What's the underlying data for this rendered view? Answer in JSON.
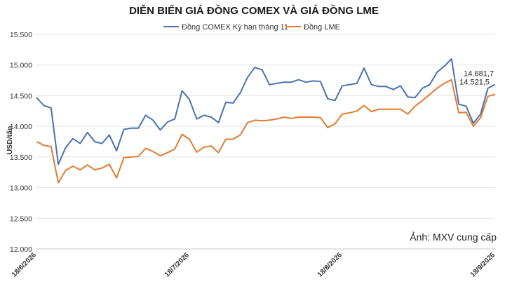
{
  "chart_data": {
    "type": "line",
    "title": "DIỄN BIẾN GIÁ ĐỒNG COMEX VÀ GIÁ ĐỒNG LME",
    "ylabel": "USD/tấn",
    "xlabel": "",
    "ylim": [
      12000,
      15500
    ],
    "yticks": [
      "12.000",
      "12.500",
      "13.000",
      "13.500",
      "14.000",
      "14.500",
      "15.000",
      "15.500"
    ],
    "ytick_values": [
      12000,
      12500,
      13000,
      13500,
      14000,
      14500,
      15000,
      15500
    ],
    "xtick_labels": [
      "18/6/2026",
      "18/7/2026",
      "18/8/2026",
      "18/9/2026"
    ],
    "xtick_index": [
      0,
      21,
      42,
      63
    ],
    "n_points": 64,
    "grid": true,
    "legend_position": "top",
    "series": [
      {
        "name": "Đồng COMEX Kỳ hạn tháng 11",
        "color": "#4a72b0",
        "values": [
          14470,
          14340,
          14300,
          13380,
          13650,
          13800,
          13720,
          13900,
          13750,
          13720,
          13860,
          13600,
          13950,
          13970,
          13970,
          14180,
          14100,
          13940,
          14070,
          14120,
          14580,
          14440,
          14120,
          14180,
          14150,
          14060,
          14390,
          14380,
          14550,
          14800,
          14960,
          14920,
          14680,
          14700,
          14720,
          14720,
          14760,
          14720,
          14740,
          14730,
          14450,
          14420,
          14660,
          14680,
          14700,
          14950,
          14680,
          14650,
          14650,
          14600,
          14660,
          14480,
          14470,
          14620,
          14680,
          14880,
          14980,
          15100,
          14360,
          14330,
          14050,
          14200,
          14620,
          14682
        ]
      },
      {
        "name": "Đồng LME",
        "color": "#e07c33",
        "values": [
          13750,
          13690,
          13670,
          13080,
          13280,
          13350,
          13290,
          13370,
          13290,
          13320,
          13380,
          13160,
          13490,
          13500,
          13510,
          13640,
          13590,
          13520,
          13570,
          13630,
          13870,
          13790,
          13580,
          13660,
          13680,
          13570,
          13790,
          13790,
          13860,
          14060,
          14100,
          14090,
          14100,
          14120,
          14150,
          14130,
          14150,
          14150,
          14150,
          14140,
          13980,
          14040,
          14200,
          14220,
          14250,
          14340,
          14240,
          14280,
          14280,
          14280,
          14280,
          14200,
          14330,
          14420,
          14520,
          14620,
          14700,
          14760,
          14220,
          14230,
          14000,
          14140,
          14490,
          14522
        ]
      }
    ],
    "annotations": [
      {
        "series": 0,
        "text": "14.681,7"
      },
      {
        "series": 1,
        "text": "14.521,5"
      }
    ]
  },
  "credit": "Ảnh: MXV cung cấp"
}
